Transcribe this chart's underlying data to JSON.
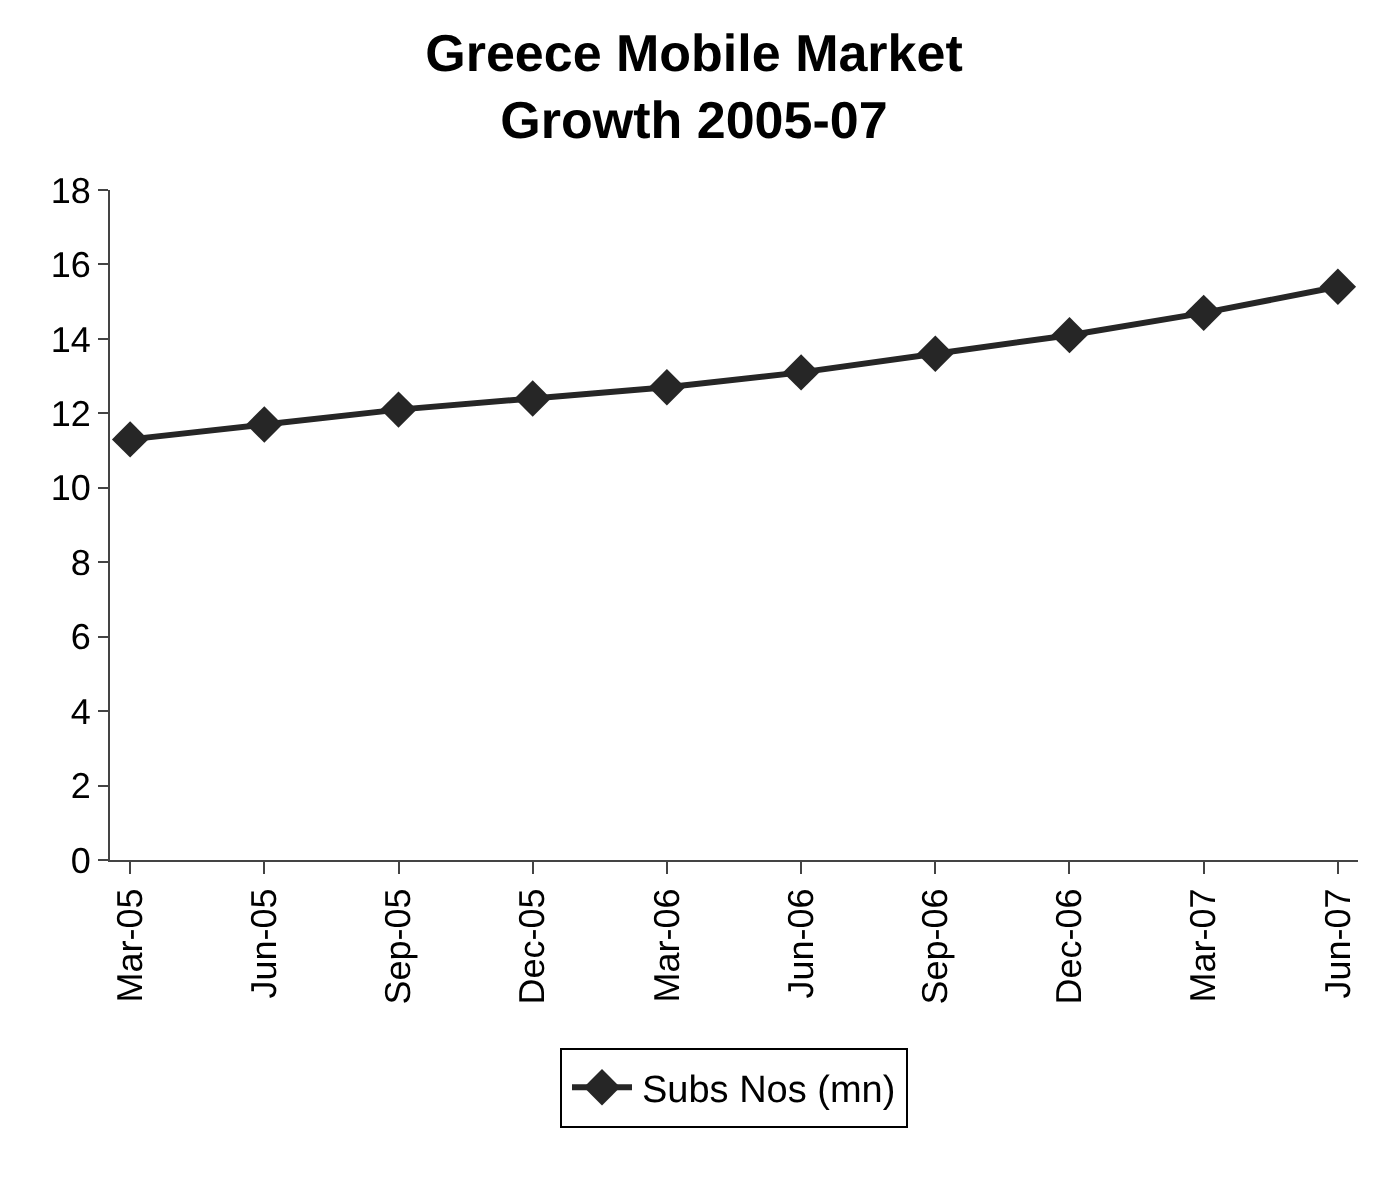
{
  "chart_data": {
    "type": "line",
    "title": "Greece Mobile Market\nGrowth 2005-07",
    "categories": [
      "Mar-05",
      "Jun-05",
      "Sep-05",
      "Dec-05",
      "Mar-06",
      "Jun-06",
      "Sep-06",
      "Dec-06",
      "Mar-07",
      "Jun-07"
    ],
    "series": [
      {
        "name": "Subs Nos (mn)",
        "color": "#262626",
        "values": [
          11.3,
          11.7,
          12.1,
          12.4,
          12.7,
          13.1,
          13.6,
          14.1,
          14.7,
          15.4
        ]
      }
    ],
    "ylim": [
      0,
      18
    ],
    "yticks": [
      0,
      2,
      4,
      6,
      8,
      10,
      12,
      14,
      16,
      18
    ],
    "grid": false,
    "legend": "bottom",
    "marker": "diamond",
    "line_style": "solid"
  }
}
